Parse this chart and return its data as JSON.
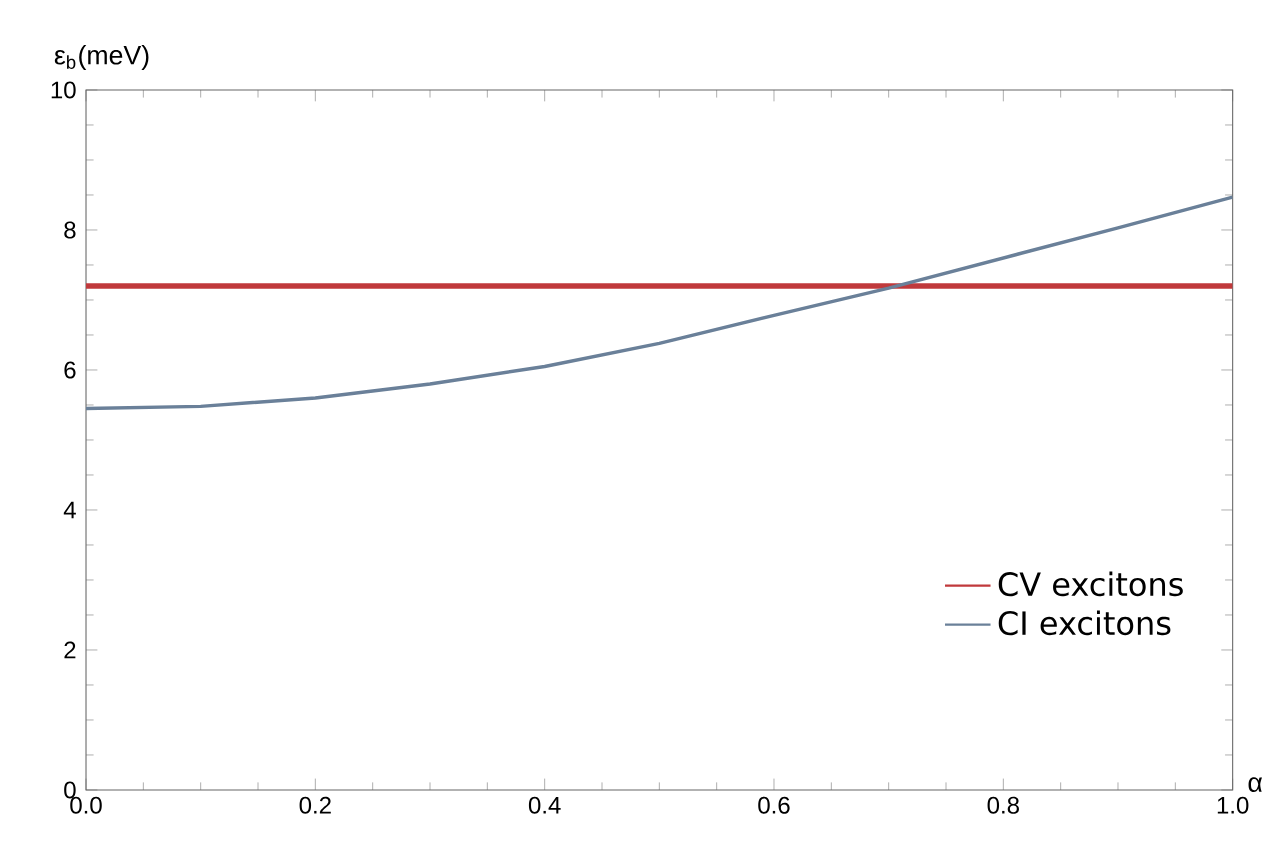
{
  "chart_data": {
    "type": "line",
    "xlabel": "α",
    "ylabel": "ε$_{b}$(meV)",
    "series": [
      {
        "name": "CV excitons",
        "color": "#c0393b",
        "x": [
          0,
          1
        ],
        "values": [
          7.2,
          7.2
        ]
      },
      {
        "name": "CI excitons",
        "color": "#6a8099",
        "x": [
          0,
          0.1,
          0.2,
          0.3,
          0.4,
          0.5,
          0.6,
          0.7,
          0.8,
          0.9,
          1.0
        ],
        "values": [
          5.45,
          5.48,
          5.6,
          5.8,
          6.05,
          6.38,
          6.78,
          7.17,
          7.6,
          8.03,
          8.47
        ]
      }
    ],
    "xlim": [
      0,
      1
    ],
    "ylim": [
      0,
      10
    ],
    "xticks": [
      {
        "value": 0,
        "label": "0.0"
      },
      0.2,
      0.4,
      0.6,
      0.8,
      {
        "value": 1,
        "label": "1.0"
      }
    ],
    "yticks": [
      0,
      2,
      4,
      6,
      8,
      10
    ],
    "grid": false,
    "legend": "bottom right",
    "marker": "none",
    "line_style": "solid"
  }
}
